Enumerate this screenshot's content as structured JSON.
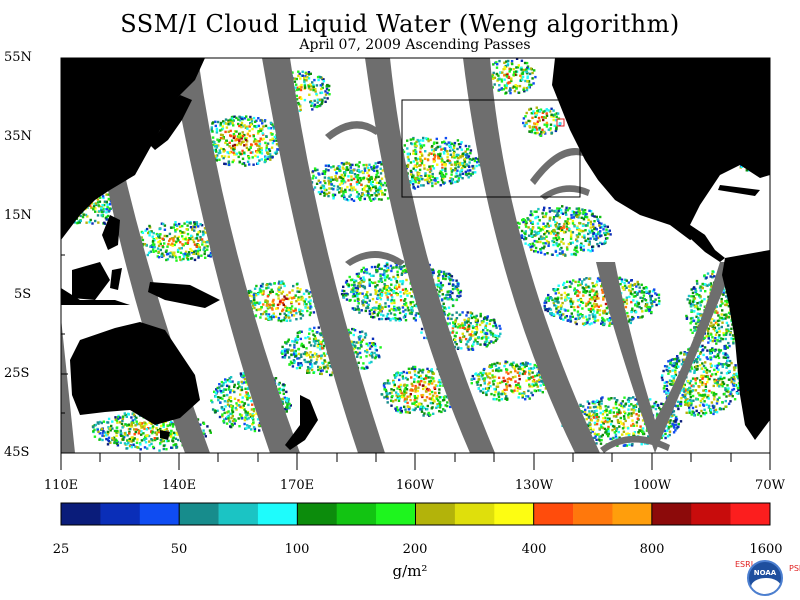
{
  "title": "SSM/I Cloud Liquid Water (Weng algorithm)",
  "subtitle": "April 07, 2009  Ascending Passes",
  "lat_labels": [
    "55N",
    "35N",
    "15N",
    "5S",
    "25S",
    "45S"
  ],
  "lon_labels": [
    "110E",
    "140E",
    "170E",
    "160W",
    "130W",
    "100W",
    "70W"
  ],
  "colorbar": {
    "colors": [
      "#0a1c7a",
      "#0a2eb8",
      "#0f4cf2",
      "#178c8c",
      "#1bc4c4",
      "#1efcfc",
      "#0c8c0c",
      "#12c412",
      "#1ef51e",
      "#b3b30a",
      "#dfdf0c",
      "#fdfd12",
      "#ff4c0c",
      "#ff780c",
      "#ff9e0c",
      "#8c0a0a",
      "#c80c0c",
      "#fc1e1e"
    ],
    "tick_labels": [
      "25",
      "50",
      "100",
      "200",
      "400",
      "800",
      "1600"
    ],
    "units": "g/m²"
  },
  "colors": {
    "land": "#000000",
    "swath_gap": "#6e6e6e",
    "ocean_clear": "#ffffff"
  },
  "logo": {
    "left_text": "ESRL",
    "right_text": "PSD",
    "center_text": "NOAA"
  }
}
